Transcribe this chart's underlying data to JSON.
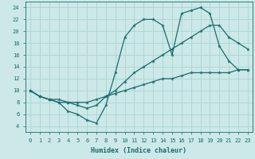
{
  "xlabel": "Humidex (Indice chaleur)",
  "background_color": "#cce8e8",
  "grid_color": "#aad4d4",
  "line_color": "#1a6b6b",
  "xlim": [
    -0.5,
    23.5
  ],
  "ylim": [
    3,
    25
  ],
  "xticks": [
    0,
    1,
    2,
    3,
    4,
    5,
    6,
    7,
    8,
    9,
    10,
    11,
    12,
    13,
    14,
    15,
    16,
    17,
    18,
    19,
    20,
    21,
    22,
    23
  ],
  "yticks": [
    4,
    6,
    8,
    10,
    12,
    14,
    16,
    18,
    20,
    22,
    24
  ],
  "line1_x": [
    0,
    1,
    2,
    3,
    4,
    5,
    6,
    7,
    8,
    9,
    10,
    11,
    12,
    13,
    14,
    15,
    16,
    17,
    18,
    19,
    20,
    21,
    22,
    23
  ],
  "line1_y": [
    10,
    9,
    8.5,
    8,
    6.5,
    6,
    5,
    4.5,
    7.5,
    13,
    19,
    21,
    22,
    22,
    21,
    16,
    23,
    23.5,
    24,
    23,
    17.5,
    15,
    13.5,
    13.5
  ],
  "line2_x": [
    0,
    1,
    2,
    3,
    4,
    5,
    6,
    7,
    8,
    9,
    10,
    11,
    12,
    13,
    14,
    15,
    16,
    17,
    18,
    19,
    20,
    21,
    22,
    23
  ],
  "line2_y": [
    10,
    9,
    8.5,
    8,
    8,
    7.5,
    7,
    7.5,
    9,
    10,
    11.5,
    13,
    14,
    15,
    16,
    17,
    18,
    19,
    20,
    21,
    21,
    19,
    18,
    17
  ],
  "line3_x": [
    0,
    1,
    2,
    3,
    4,
    5,
    6,
    7,
    8,
    9,
    10,
    11,
    12,
    13,
    14,
    15,
    16,
    17,
    18,
    19,
    20,
    21,
    22,
    23
  ],
  "line3_y": [
    10,
    9,
    8.5,
    8.5,
    8,
    8,
    8,
    8.5,
    9,
    9.5,
    10,
    10.5,
    11,
    11.5,
    12,
    12,
    12.5,
    13,
    13,
    13,
    13,
    13,
    13.5,
    13.5
  ]
}
